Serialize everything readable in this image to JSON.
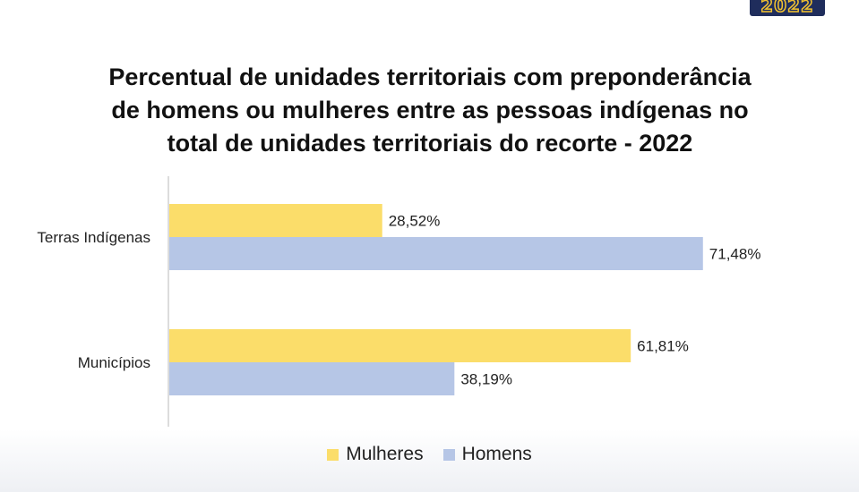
{
  "badge": {
    "text": "2022"
  },
  "colors": {
    "mulheres": "#fbdd6a",
    "homens": "#b6c6e6",
    "axis": "#d0d0d0"
  },
  "chart_data": {
    "type": "bar",
    "orientation": "horizontal",
    "title_lines": [
      "Percentual de unidades territoriais com preponderância",
      "de homens ou mulheres entre as pessoas indígenas no",
      "total de unidades territoriais do recorte - 2022"
    ],
    "categories": [
      "Terras Indígenas",
      "Municípios"
    ],
    "series": [
      {
        "name": "Mulheres",
        "values": [
          28.52,
          61.81
        ],
        "labels": [
          "28,52%",
          "61,81%"
        ]
      },
      {
        "name": "Homens",
        "values": [
          71.48,
          38.19
        ],
        "labels": [
          "71,48%",
          "38,19%"
        ]
      }
    ],
    "xlim": [
      0,
      100
    ],
    "grid": false,
    "legend_position": "bottom"
  }
}
